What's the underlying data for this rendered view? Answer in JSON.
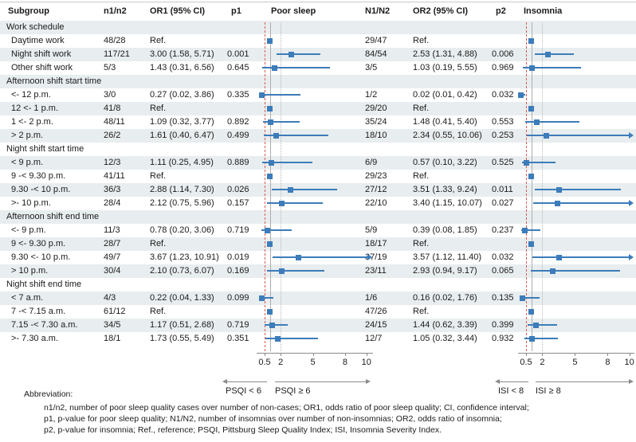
{
  "header": {
    "subgroup": "Subgroup",
    "n1n2": "n1/n2",
    "or1": "OR1 (95% CI)",
    "p1": "p1",
    "poor_sleep": "Poor sleep",
    "N1N2": "N1/N2",
    "or2": "OR2 (95% CI)",
    "p2": "p2",
    "insomnia": "Insomnia"
  },
  "chart_data": {
    "type": "forest",
    "outcomes": [
      "Poor sleep",
      "Insomnia"
    ],
    "axis": {
      "min": 0.5,
      "max": 10,
      "tick_values": [
        0.5,
        2,
        5,
        8,
        10
      ],
      "tick_labels": [
        "0.5",
        "2",
        "5",
        "8",
        "10"
      ],
      "ref_line_dashed": 0.5,
      "ref_line_solid": 1,
      "ref_line_dotted": 2
    },
    "groups": [
      {
        "label": "Work schedule",
        "rows": [
          {
            "label": "Daytime work",
            "n": "48/28",
            "ps": {
              "ref": true,
              "text": "Ref.",
              "p": ""
            },
            "N": "29/47",
            "ins": {
              "ref": true,
              "text": "Ref.",
              "p": ""
            }
          },
          {
            "label": "Night shift work",
            "n": "117/21",
            "ps": {
              "or": 3.0,
              "lo": 1.58,
              "hi": 5.71,
              "text": "3.00 (1.58, 5.71)",
              "p": "0.001"
            },
            "N": "84/54",
            "ins": {
              "or": 2.53,
              "lo": 1.31,
              "hi": 4.88,
              "text": "2.53 (1.31, 4.88)",
              "p": "0.006"
            }
          },
          {
            "label": "Other shift work",
            "n": "5/3",
            "ps": {
              "or": 1.43,
              "lo": 0.31,
              "hi": 6.56,
              "text": "1.43 (0.31, 6.56)",
              "p": "0.645"
            },
            "N": "3/5",
            "ins": {
              "or": 1.03,
              "lo": 0.19,
              "hi": 5.55,
              "text": "1.03 (0.19, 5.55)",
              "p": "0.969"
            }
          }
        ]
      },
      {
        "label": "Afternoon shift start time",
        "rows": [
          {
            "label": "<- 12 p.m.",
            "n": "3/0",
            "ps": {
              "or": 0.27,
              "lo": 0.02,
              "hi": 3.86,
              "text": "0.27 (0.02, 3.86)",
              "p": "0.335"
            },
            "N": "1/2",
            "ins": {
              "or": 0.02,
              "lo": 0.01,
              "hi": 0.42,
              "text": "0.02 (0.01, 0.42)",
              "p": "0.032"
            }
          },
          {
            "label": "12 <- 1 p.m.",
            "n": "41/8",
            "ps": {
              "ref": true,
              "text": "Ref.",
              "p": ""
            },
            "N": "29/20",
            "ins": {
              "ref": true,
              "text": "Ref.",
              "p": ""
            }
          },
          {
            "label": "1 <- 2 p.m.",
            "n": "48/11",
            "ps": {
              "or": 1.09,
              "lo": 0.32,
              "hi": 3.77,
              "text": "1.09 (0.32, 3.77)",
              "p": "0.892"
            },
            "N": "35/24",
            "ins": {
              "or": 1.48,
              "lo": 0.41,
              "hi": 5.4,
              "text": "1.48 (0.41, 5.40)",
              "p": "0.553"
            }
          },
          {
            "label": "> 2 p.m.",
            "n": "26/2",
            "ps": {
              "or": 1.61,
              "lo": 0.4,
              "hi": 6.47,
              "text": "1.61 (0.40, 6.47)",
              "p": "0.499"
            },
            "N": "18/10",
            "ins": {
              "or": 2.34,
              "lo": 0.55,
              "hi": 10.06,
              "text": "2.34 (0.55, 10.06)",
              "p": "0.253"
            }
          }
        ]
      },
      {
        "label": "Night shift start time",
        "rows": [
          {
            "label": "< 9 p.m.",
            "n": "12/3",
            "ps": {
              "or": 1.11,
              "lo": 0.25,
              "hi": 4.95,
              "text": "1.11 (0.25, 4.95)",
              "p": "0.889"
            },
            "N": "6/9",
            "ins": {
              "or": 0.57,
              "lo": 0.1,
              "hi": 3.22,
              "text": "0.57 (0.10, 3.22)",
              "p": "0.525"
            }
          },
          {
            "label": "9 -< 9.30 p.m.",
            "n": "41/11",
            "ps": {
              "ref": true,
              "text": "Ref.",
              "p": ""
            },
            "N": "29/23",
            "ins": {
              "ref": true,
              "text": "Ref.",
              "p": ""
            }
          },
          {
            "label": "9.30 -< 10 p.m.",
            "n": "36/3",
            "ps": {
              "or": 2.88,
              "lo": 1.14,
              "hi": 7.3,
              "text": "2.88 (1.14, 7.30)",
              "p": "0.026"
            },
            "N": "27/12",
            "ins": {
              "or": 3.51,
              "lo": 1.33,
              "hi": 9.24,
              "text": "3.51 (1.33, 9.24)",
              "p": "0.011"
            }
          },
          {
            "label": ">- 10 p.m.",
            "n": "28/4",
            "ps": {
              "or": 2.12,
              "lo": 0.75,
              "hi": 5.96,
              "text": "2.12 (0.75, 5.96)",
              "p": "0.157"
            },
            "N": "22/10",
            "ins": {
              "or": 3.4,
              "lo": 1.15,
              "hi": 10.07,
              "text": "3.40 (1.15, 10.07)",
              "p": "0.027"
            }
          }
        ]
      },
      {
        "label": "Afternoon shift end time",
        "rows": [
          {
            "label": "<- 9 p.m.",
            "n": "11/3",
            "ps": {
              "or": 0.78,
              "lo": 0.2,
              "hi": 3.06,
              "text": "0.78 (0.20, 3.06)",
              "p": "0.719"
            },
            "N": "5/9",
            "ins": {
              "or": 0.39,
              "lo": 0.08,
              "hi": 1.85,
              "text": "0.39 (0.08, 1.85)",
              "p": "0.237"
            }
          },
          {
            "label": "9 <- 9.30 p.m.",
            "n": "28/7",
            "ps": {
              "ref": true,
              "text": "Ref.",
              "p": ""
            },
            "N": "18/17",
            "ins": {
              "ref": true,
              "text": "Ref.",
              "p": ""
            }
          },
          {
            "label": "9.30 <- 10 p.m.",
            "n": "49/7",
            "ps": {
              "or": 3.67,
              "lo": 1.23,
              "hi": 10.91,
              "text": "3.67 (1.23, 10.91)",
              "p": "0.019"
            },
            "N": "37/19",
            "ins": {
              "or": 3.57,
              "lo": 1.12,
              "hi": 11.4,
              "text": "3.57 (1.12, 11.40)",
              "p": "0.032"
            }
          },
          {
            "label": "> 10 p.m.",
            "n": "30/4",
            "ps": {
              "or": 2.1,
              "lo": 0.73,
              "hi": 6.07,
              "text": "2.10 (0.73, 6.07)",
              "p": "0.169"
            },
            "N": "23/11",
            "ins": {
              "or": 2.93,
              "lo": 0.94,
              "hi": 9.17,
              "text": "2.93 (0.94, 9.17)",
              "p": "0.065"
            }
          }
        ]
      },
      {
        "label": "Night shift end time",
        "rows": [
          {
            "label": "< 7 a.m.",
            "n": "4/3",
            "ps": {
              "or": 0.22,
              "lo": 0.04,
              "hi": 1.33,
              "text": "0.22 (0.04, 1.33)",
              "p": "0.099"
            },
            "N": "1/6",
            "ins": {
              "or": 0.16,
              "lo": 0.02,
              "hi": 1.76,
              "text": "0.16 (0.02, 1.76)",
              "p": "0.135"
            }
          },
          {
            "label": "7 -< 7.15 a.m.",
            "n": "61/12",
            "ps": {
              "ref": true,
              "text": "Ref.",
              "p": ""
            },
            "N": "47/26",
            "ins": {
              "ref": true,
              "text": "Ref.",
              "p": ""
            }
          },
          {
            "label": "7.15 -< 7.30 a.m.",
            "n": "34/5",
            "ps": {
              "or": 1.17,
              "lo": 0.51,
              "hi": 2.68,
              "text": "1.17 (0.51, 2.68)",
              "p": "0.719"
            },
            "N": "24/15",
            "ins": {
              "or": 1.44,
              "lo": 0.62,
              "hi": 3.39,
              "text": "1.44 (0.62, 3.39)",
              "p": "0.399"
            }
          },
          {
            "label": ">- 7.30 a.m.",
            "n": "18/1",
            "ps": {
              "or": 1.73,
              "lo": 0.55,
              "hi": 5.49,
              "text": "1.73 (0.55, 5.49)",
              "p": "0.351"
            },
            "N": "12/7",
            "ins": {
              "or": 1.05,
              "lo": 0.32,
              "hi": 3.44,
              "text": "1.05 (0.32, 3.44)",
              "p": "0.932"
            }
          }
        ]
      }
    ]
  },
  "annotations": {
    "psqi_lt": "PSQI < 6",
    "psqi_ge": "PSQI ≥ 6",
    "isi_lt": "ISI < 8",
    "isi_ge": "ISI ≥ 8"
  },
  "footnotes": {
    "label": "Abbreviation:",
    "lines": [
      "n1/n2, number of poor sleep quality cases over number of non-cases; OR1, odds ratio of poor sleep quality; CI, confidence interval;",
      "p1, p-value for poor sleep quality; N1/N2, number of insomnias over number of non-insomnias; OR2, odds ratio of insomnia;",
      "p2, p-value for insomnia; Ref., reference; PSQI, Pittsburg Sleep Quality Index; ISI, Insomnia Severity Index."
    ]
  },
  "colors": {
    "marker_blue": "#3c7cba",
    "ref_red_dashed": "#df5a4c",
    "stripe": "#e8edef",
    "axis_gray": "#8a8a8a",
    "ref_solid_gray": "#adadad",
    "ref_dotted_gray": "#b8b8b8"
  }
}
